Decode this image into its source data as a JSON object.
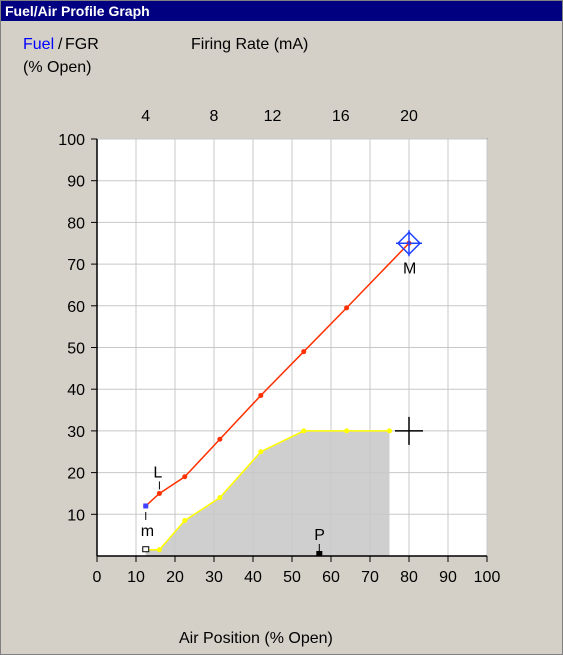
{
  "window": {
    "title": "Fuel/Air Profile Graph"
  },
  "legend": {
    "fuel_label": "Fuel",
    "separator": "/",
    "fgr_label": "FGR",
    "unit_label": "(% Open)"
  },
  "chart_data": {
    "type": "line",
    "title": "Fuel/Air Profile Graph",
    "xlabel": "Air Position (% Open)",
    "x2label": "Firing Rate (mA)",
    "ylabel": "Fuel / FGR (% Open)",
    "xlim": [
      0,
      100
    ],
    "ylim": [
      0,
      100
    ],
    "x_ticks": [
      0,
      10,
      20,
      30,
      40,
      50,
      60,
      70,
      80,
      90,
      100
    ],
    "y_ticks": [
      10,
      20,
      30,
      40,
      50,
      60,
      70,
      80,
      90,
      100
    ],
    "x2_ticks": [
      "4",
      "8",
      "12",
      "16",
      "20"
    ],
    "x2_tick_positions": [
      12.5,
      30,
      45,
      62.5,
      80
    ],
    "grid": true,
    "series": [
      {
        "name": "Fuel",
        "color": "#ff3000",
        "x": [
          12.5,
          16,
          22.5,
          31.5,
          42,
          53,
          64,
          80
        ],
        "y": [
          12,
          15,
          19,
          28,
          38.5,
          49,
          59.5,
          75
        ]
      },
      {
        "name": "FGR",
        "color": "#ffff00",
        "x": [
          12.5,
          16,
          22.5,
          31.5,
          42,
          53,
          64,
          75
        ],
        "y": [
          1.5,
          1.5,
          8.5,
          14,
          25,
          30,
          30,
          30
        ]
      }
    ],
    "markers": [
      {
        "label": "L",
        "x": 16,
        "y": 15
      },
      {
        "label": "m",
        "x": 12.5,
        "y": 12
      },
      {
        "label": "P",
        "x": 57,
        "y": 0
      },
      {
        "label": "M",
        "x": 80,
        "y": 75
      }
    ],
    "cursor": {
      "x": 80,
      "y": 30
    }
  }
}
